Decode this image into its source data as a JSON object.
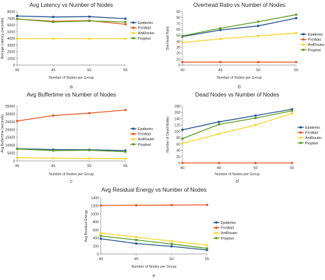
{
  "chart_data": [
    {
      "type": "line",
      "title": "Avg Latency vs Number of Nodes",
      "xlabel": "Number of Nodes per Group",
      "ylabel": "Average Latency (seconds)",
      "x": [
        40,
        45,
        50,
        55
      ],
      "xlim": [
        40,
        55
      ],
      "ylim": [
        0,
        8000
      ],
      "yticks": [
        0,
        1000,
        2000,
        3000,
        4000,
        5000,
        6000,
        7000,
        8000
      ],
      "grid": false,
      "legend": "right",
      "caption": "a",
      "series": [
        {
          "name": "Epidemic",
          "color": "#1f4e8c",
          "values": [
            7350,
            7200,
            7250,
            6950
          ]
        },
        {
          "name": "ProWait",
          "color": "#e8541c",
          "values": [
            6900,
            6550,
            6650,
            6100
          ]
        },
        {
          "name": "AntRouter",
          "color": "#ffd320",
          "values": [
            3950,
            3950,
            3950,
            3950
          ]
        },
        {
          "name": "Prophet",
          "color": "#579d1c",
          "values": [
            6900,
            6450,
            6600,
            6450
          ]
        }
      ]
    },
    {
      "type": "line",
      "title": "Overhead Ratio vs Number of Nodes",
      "xlabel": "Number of Nodes per Group",
      "ylabel": "Overhead Ratio",
      "x": [
        40,
        45,
        50,
        55
      ],
      "xlim": [
        40,
        55
      ],
      "ylim": [
        0,
        90
      ],
      "yticks": [
        0,
        10,
        20,
        30,
        40,
        50,
        60,
        70,
        80,
        90
      ],
      "grid": false,
      "legend": "right",
      "caption": "b",
      "series": [
        {
          "name": "Epidemic",
          "color": "#1f4e8c",
          "values": [
            48,
            59,
            66,
            79
          ]
        },
        {
          "name": "ProWait",
          "color": "#e8541c",
          "values": [
            5,
            5,
            5,
            5
          ]
        },
        {
          "name": "AntRouter",
          "color": "#ffd320",
          "values": [
            38,
            44,
            49,
            54
          ]
        },
        {
          "name": "Prophet",
          "color": "#579d1c",
          "values": [
            49,
            62,
            73,
            85
          ]
        }
      ]
    },
    {
      "type": "line",
      "title": "Avg Buffertime vs Number of Nodes",
      "xlabel": "Number of Nodes per Group",
      "ylabel": "Avg Buffertime (seconds)",
      "x": [
        40,
        45,
        50,
        55
      ],
      "xlim": [
        40,
        55
      ],
      "ylim": [
        0,
        35000
      ],
      "yticks": [
        0,
        5000,
        10000,
        15000,
        20000,
        25000,
        30000,
        35000
      ],
      "grid": false,
      "legend": "right",
      "caption": "c",
      "series": [
        {
          "name": "Epidemic",
          "color": "#1f4e8c",
          "values": [
            7800,
            7200,
            7100,
            6600
          ]
        },
        {
          "name": "ProWait",
          "color": "#e8541c",
          "values": [
            25500,
            29000,
            30500,
            32500
          ]
        },
        {
          "name": "AntRouter",
          "color": "#ffd320",
          "values": [
            2000,
            1700,
            1600,
            1400
          ]
        },
        {
          "name": "Prophet",
          "color": "#579d1c",
          "values": [
            7600,
            6600,
            6800,
            5800
          ]
        }
      ]
    },
    {
      "type": "line",
      "title": "Dead Nodes vs Number of Nodes",
      "xlabel": "Number of Nodes per Group",
      "ylabel": "Number of Dead Nodes",
      "x": [
        40,
        45,
        50,
        55
      ],
      "xlim": [
        40,
        55
      ],
      "ylim": [
        0,
        180
      ],
      "yticks": [
        0,
        20,
        40,
        60,
        80,
        100,
        120,
        140,
        160,
        180
      ],
      "grid": false,
      "legend": "right",
      "caption": "d",
      "series": [
        {
          "name": "Epidemic",
          "color": "#1f4e8c",
          "values": [
            105,
            130,
            150,
            170
          ]
        },
        {
          "name": "ProWait",
          "color": "#e8541c",
          "values": [
            0,
            0,
            0,
            0
          ]
        },
        {
          "name": "AntRouter",
          "color": "#ffd320",
          "values": [
            62,
            92,
            120,
            157
          ]
        },
        {
          "name": "Prophet",
          "color": "#579d1c",
          "values": [
            77,
            122,
            142,
            165
          ]
        }
      ]
    },
    {
      "type": "line",
      "title": "Avg Residual Energy vs Number of Nodes",
      "xlabel": "Number of Nodes per Group",
      "ylabel": "Avg Residual Energy",
      "x": [
        40,
        45,
        50,
        55
      ],
      "xlim": [
        40,
        55
      ],
      "ylim": [
        0,
        1400
      ],
      "yticks": [
        0,
        200,
        400,
        600,
        800,
        1000,
        1200,
        1400
      ],
      "grid": false,
      "legend": "right",
      "caption": "e",
      "series": [
        {
          "name": "Epidemic",
          "color": "#1f4e8c",
          "values": [
            380,
            260,
            190,
            100
          ]
        },
        {
          "name": "ProWait",
          "color": "#e8541c",
          "values": [
            1210,
            1215,
            1220,
            1225
          ]
        },
        {
          "name": "AntRouter",
          "color": "#ffd320",
          "values": [
            520,
            420,
            320,
            220
          ]
        },
        {
          "name": "Prophet",
          "color": "#579d1c",
          "values": [
            450,
            350,
            250,
            140
          ]
        }
      ]
    }
  ]
}
